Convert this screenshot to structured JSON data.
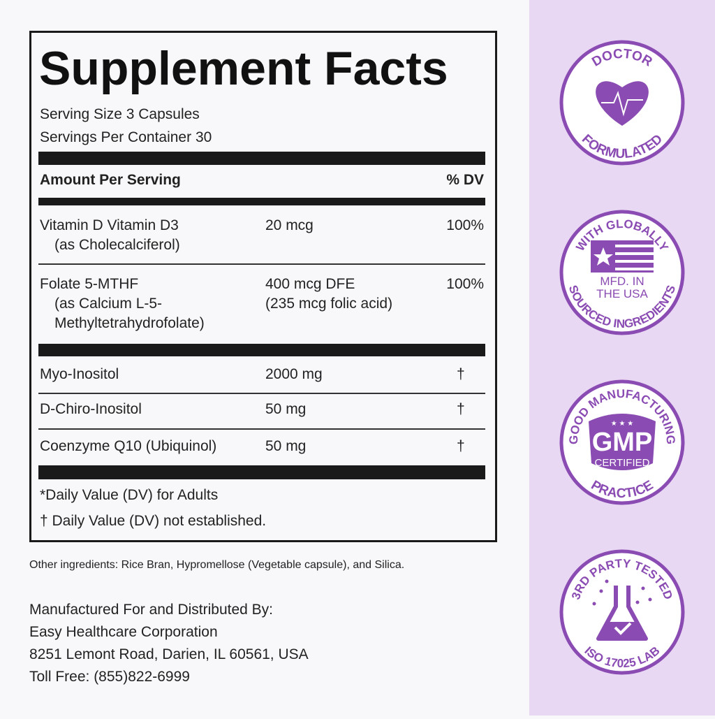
{
  "facts": {
    "title": "Supplement Facts",
    "serving_size": "Serving Size 3 Capsules",
    "servings_per_container": "Servings Per Container 30",
    "header": {
      "amount": "Amount Per Serving",
      "dv": "% DV"
    },
    "rows": [
      {
        "name": "Vitamin D Vitamin D3",
        "sub": [
          "(as Cholecalciferol)"
        ],
        "amount": [
          "20 mcg"
        ],
        "dv": "100%"
      },
      {
        "name": "Folate 5-MTHF",
        "sub": [
          "(as Calcium L-5-",
          "Methyltetrahydrofolate)"
        ],
        "amount": [
          "400 mcg DFE",
          "(235 mcg folic acid)"
        ],
        "dv": "100%"
      }
    ],
    "other_rows": [
      {
        "name": "Myo-Inositol",
        "amount": "2000 mg",
        "dv": "†"
      },
      {
        "name": "D-Chiro-Inositol",
        "amount": "50 mg",
        "dv": "†"
      },
      {
        "name": "Coenzyme Q10 (Ubiquinol)",
        "amount": "50 mg",
        "dv": "†"
      }
    ],
    "footnotes": [
      "*Daily Value (DV) for Adults",
      "† Daily Value (DV) not established."
    ]
  },
  "other_ingredients": "Other ingredients: Rice Bran, Hypromellose (Vegetable capsule), and Silica.",
  "manufacturer": [
    "Manufactured For and Distributed By:",
    "Easy Healthcare Corporation",
    "8251 Lemont Road, Darien, IL 60561, USA",
    "Toll Free: (855)822-6999"
  ],
  "badges": [
    {
      "top": "DOCTOR",
      "bottom": "FORMULATED"
    },
    {
      "top": "WITH GLOBALLY",
      "bottom": "SOURCED INGREDIENTS",
      "center": [
        "MFD. IN",
        "THE USA"
      ]
    },
    {
      "top": "GOOD MANUFACTURING",
      "bottom": "PRACTICE",
      "center": [
        "GMP",
        "CERTIFIED"
      ]
    },
    {
      "top": "3RD PARTY TESTED",
      "bottom": "ISO 17025 LAB"
    }
  ]
}
